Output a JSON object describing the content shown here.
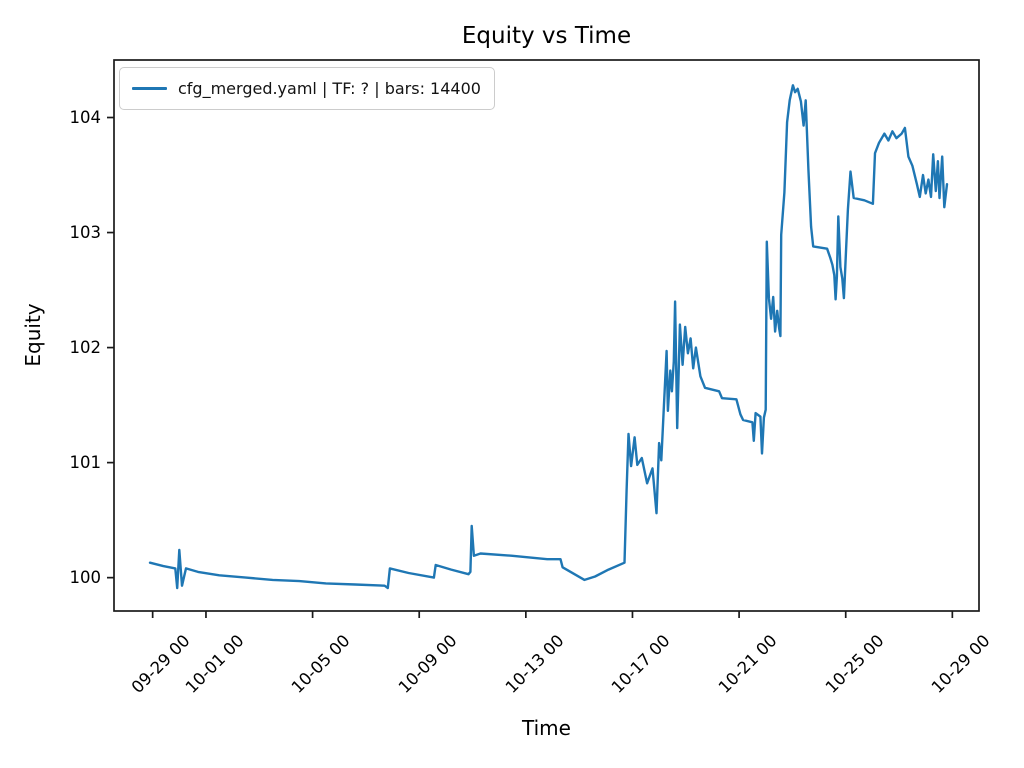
{
  "chart_data": {
    "type": "line",
    "title": "Equity vs Time",
    "xlabel": "Time",
    "ylabel": "Equity",
    "grid": false,
    "legend_position": "upper left",
    "frame_color": "#1a1a1a",
    "x_unit": "days since first x tick (09-29 00)",
    "xlim": [
      -1.45,
      31.0
    ],
    "ylim": [
      99.71,
      104.5
    ],
    "y_ticks": [
      "100",
      "101",
      "102",
      "103",
      "104"
    ],
    "x_ticks": [
      {
        "day": 0,
        "label": "09-29 00"
      },
      {
        "day": 2,
        "label": "10-01 00"
      },
      {
        "day": 6,
        "label": "10-05 00"
      },
      {
        "day": 10,
        "label": "10-09 00"
      },
      {
        "day": 14,
        "label": "10-13 00"
      },
      {
        "day": 18,
        "label": "10-17 00"
      },
      {
        "day": 22,
        "label": "10-21 00"
      },
      {
        "day": 26,
        "label": "10-25 00"
      },
      {
        "day": 30,
        "label": "10-29 00"
      }
    ],
    "series": [
      {
        "name": "cfg_merged.yaml | TF: ? | bars: 14400",
        "color": "#1f77b4",
        "points": [
          [
            -0.1,
            100.13
          ],
          [
            0.4,
            100.1
          ],
          [
            0.85,
            100.08
          ],
          [
            0.92,
            99.91
          ],
          [
            1.0,
            100.24
          ],
          [
            1.1,
            99.93
          ],
          [
            1.25,
            100.08
          ],
          [
            1.7,
            100.05
          ],
          [
            2.5,
            100.02
          ],
          [
            3.5,
            100.0
          ],
          [
            4.5,
            99.98
          ],
          [
            5.5,
            99.97
          ],
          [
            6.5,
            99.95
          ],
          [
            7.6,
            99.94
          ],
          [
            8.7,
            99.93
          ],
          [
            8.82,
            99.91
          ],
          [
            8.9,
            100.08
          ],
          [
            9.6,
            100.04
          ],
          [
            10.55,
            100.0
          ],
          [
            10.62,
            100.11
          ],
          [
            11.2,
            100.07
          ],
          [
            11.85,
            100.03
          ],
          [
            11.92,
            100.05
          ],
          [
            11.97,
            100.45
          ],
          [
            12.05,
            100.19
          ],
          [
            12.3,
            100.21
          ],
          [
            13.5,
            100.19
          ],
          [
            14.8,
            100.16
          ],
          [
            15.3,
            100.16
          ],
          [
            15.38,
            100.09
          ],
          [
            16.2,
            99.98
          ],
          [
            16.6,
            100.01
          ],
          [
            17.1,
            100.07
          ],
          [
            17.7,
            100.13
          ],
          [
            17.78,
            100.76
          ],
          [
            17.85,
            101.25
          ],
          [
            17.95,
            100.97
          ],
          [
            18.08,
            101.22
          ],
          [
            18.18,
            100.98
          ],
          [
            18.35,
            101.04
          ],
          [
            18.55,
            100.82
          ],
          [
            18.75,
            100.95
          ],
          [
            18.9,
            100.56
          ],
          [
            19.0,
            101.17
          ],
          [
            19.08,
            101.02
          ],
          [
            19.18,
            101.49
          ],
          [
            19.28,
            101.97
          ],
          [
            19.33,
            101.45
          ],
          [
            19.42,
            101.8
          ],
          [
            19.48,
            101.62
          ],
          [
            19.55,
            101.88
          ],
          [
            19.6,
            102.4
          ],
          [
            19.68,
            101.3
          ],
          [
            19.78,
            102.2
          ],
          [
            19.88,
            101.85
          ],
          [
            19.98,
            102.18
          ],
          [
            20.08,
            101.95
          ],
          [
            20.18,
            102.08
          ],
          [
            20.28,
            101.82
          ],
          [
            20.38,
            102.0
          ],
          [
            20.55,
            101.75
          ],
          [
            20.72,
            101.65
          ],
          [
            21.25,
            101.62
          ],
          [
            21.36,
            101.56
          ],
          [
            21.9,
            101.55
          ],
          [
            22.05,
            101.42
          ],
          [
            22.15,
            101.37
          ],
          [
            22.5,
            101.35
          ],
          [
            22.55,
            101.19
          ],
          [
            22.62,
            101.43
          ],
          [
            22.8,
            101.4
          ],
          [
            22.86,
            101.08
          ],
          [
            22.93,
            101.39
          ],
          [
            23.0,
            101.46
          ],
          [
            23.04,
            102.92
          ],
          [
            23.12,
            102.43
          ],
          [
            23.2,
            102.25
          ],
          [
            23.28,
            102.44
          ],
          [
            23.35,
            102.14
          ],
          [
            23.43,
            102.32
          ],
          [
            23.5,
            102.17
          ],
          [
            23.55,
            102.1
          ],
          [
            23.58,
            102.98
          ],
          [
            23.7,
            103.35
          ],
          [
            23.8,
            103.96
          ],
          [
            23.9,
            104.15
          ],
          [
            24.02,
            104.28
          ],
          [
            24.1,
            104.22
          ],
          [
            24.2,
            104.25
          ],
          [
            24.32,
            104.14
          ],
          [
            24.42,
            103.93
          ],
          [
            24.5,
            104.15
          ],
          [
            24.6,
            103.55
          ],
          [
            24.7,
            103.05
          ],
          [
            24.78,
            102.88
          ],
          [
            25.3,
            102.86
          ],
          [
            25.42,
            102.78
          ],
          [
            25.5,
            102.72
          ],
          [
            25.57,
            102.63
          ],
          [
            25.62,
            102.42
          ],
          [
            25.67,
            102.62
          ],
          [
            25.72,
            103.14
          ],
          [
            25.8,
            102.7
          ],
          [
            25.87,
            102.6
          ],
          [
            25.93,
            102.43
          ],
          [
            26.0,
            102.78
          ],
          [
            26.08,
            103.2
          ],
          [
            26.18,
            103.53
          ],
          [
            26.3,
            103.3
          ],
          [
            26.7,
            103.28
          ],
          [
            27.02,
            103.25
          ],
          [
            27.1,
            103.69
          ],
          [
            27.25,
            103.78
          ],
          [
            27.45,
            103.86
          ],
          [
            27.6,
            103.8
          ],
          [
            27.75,
            103.88
          ],
          [
            27.9,
            103.82
          ],
          [
            28.1,
            103.86
          ],
          [
            28.22,
            103.91
          ],
          [
            28.35,
            103.66
          ],
          [
            28.5,
            103.58
          ],
          [
            28.67,
            103.42
          ],
          [
            28.78,
            103.31
          ],
          [
            28.9,
            103.5
          ],
          [
            29.0,
            103.34
          ],
          [
            29.1,
            103.46
          ],
          [
            29.2,
            103.31
          ],
          [
            29.28,
            103.68
          ],
          [
            29.38,
            103.36
          ],
          [
            29.46,
            103.62
          ],
          [
            29.52,
            103.3
          ],
          [
            29.62,
            103.66
          ],
          [
            29.7,
            103.22
          ],
          [
            29.8,
            103.42
          ]
        ]
      }
    ]
  }
}
